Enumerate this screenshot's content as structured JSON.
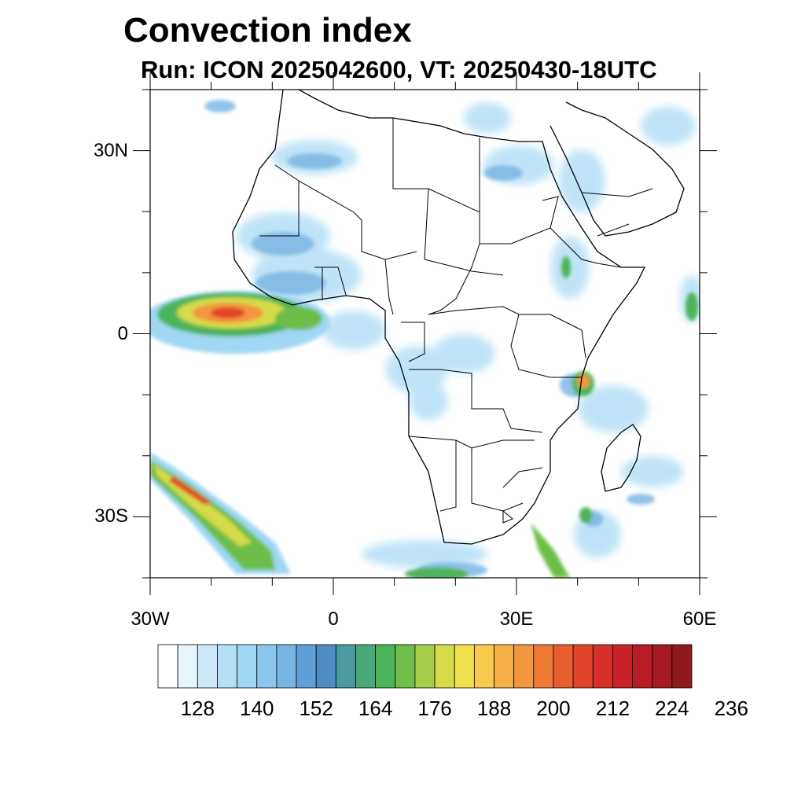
{
  "title": "Convection index",
  "subtitle": "Run: ICON 2025042600,  VT: 20250430-18UTC",
  "map": {
    "lon_range": [
      -30,
      60
    ],
    "lat_range": [
      -40,
      40
    ],
    "lat_ticks": [
      {
        "label": "30N",
        "value": 30
      },
      {
        "label": "0",
        "value": 0
      },
      {
        "label": "30S",
        "value": -30
      }
    ],
    "lon_ticks": [
      {
        "label": "30W",
        "value": -30
      },
      {
        "label": "0",
        "value": 0
      },
      {
        "label": "30E",
        "value": 30
      },
      {
        "label": "60E",
        "value": 60
      }
    ]
  },
  "colorbar": {
    "labels": [
      "128",
      "140",
      "152",
      "164",
      "176",
      "188",
      "200",
      "212",
      "224",
      "236"
    ],
    "colors": [
      "#ffffff",
      "#e6f4fc",
      "#cde9f8",
      "#b5e0f6",
      "#9fd7f4",
      "#8ac6ee",
      "#77b4e3",
      "#5f9fd6",
      "#4f8cc4",
      "#4a9aa0",
      "#4aa878",
      "#4db35a",
      "#6dbe4a",
      "#a6cc4a",
      "#d6db4a",
      "#f1e04e",
      "#f7c94c",
      "#f7af47",
      "#f39640",
      "#ee7a38",
      "#e85e30",
      "#e0452c",
      "#d72f2a",
      "#c92228",
      "#b81c24",
      "#a51a20",
      "#8e1a1c"
    ]
  }
}
